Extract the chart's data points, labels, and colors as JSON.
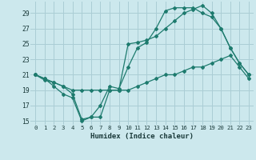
{
  "xlabel": "Humidex (Indice chaleur)",
  "bg_color": "#cce8ed",
  "line_color": "#1e7b6e",
  "grid_color": "#aacdd5",
  "xlim": [
    -0.5,
    23.5
  ],
  "ylim": [
    14.5,
    30.5
  ],
  "yticks": [
    15,
    17,
    19,
    21,
    23,
    25,
    27,
    29
  ],
  "xticks": [
    0,
    1,
    2,
    3,
    4,
    5,
    6,
    7,
    8,
    9,
    10,
    11,
    12,
    13,
    14,
    15,
    16,
    17,
    18,
    19,
    20,
    21,
    22,
    23
  ],
  "line1_x": [
    0,
    1,
    2,
    3,
    4,
    5,
    6,
    7,
    8,
    9,
    10,
    11,
    12,
    13,
    14,
    15,
    16,
    17,
    18,
    19,
    20,
    21,
    22,
    23
  ],
  "line1_y": [
    21,
    20.5,
    19.5,
    18.5,
    18,
    15,
    15.5,
    15.5,
    19,
    19,
    19,
    19.5,
    20,
    20.5,
    21,
    21,
    21.5,
    22,
    22,
    22.5,
    23,
    23.5,
    22,
    20.5
  ],
  "line2_x": [
    0,
    1,
    2,
    3,
    4,
    5,
    6,
    7,
    8,
    9,
    10,
    11,
    12,
    13,
    14,
    15,
    16,
    17,
    18,
    19,
    20,
    21,
    22,
    23
  ],
  "line2_y": [
    21,
    20.3,
    20.0,
    19.5,
    18.5,
    15.2,
    15.5,
    17.0,
    19.5,
    19.2,
    22.0,
    24.5,
    25.2,
    27.0,
    29.3,
    29.7,
    29.7,
    29.7,
    29.0,
    28.5,
    27.0,
    24.5,
    22.5,
    21.0
  ],
  "line3_x": [
    0,
    1,
    2,
    3,
    4,
    5,
    6,
    7,
    8,
    9,
    10,
    11,
    12,
    13,
    14,
    15,
    16,
    17,
    18,
    19,
    20,
    21,
    22,
    23
  ],
  "line3_y": [
    21,
    20.5,
    20.0,
    19.5,
    19.0,
    19.0,
    19.0,
    19.0,
    19.0,
    19.0,
    25.0,
    25.2,
    25.5,
    26.0,
    27.0,
    28.0,
    29.0,
    29.5,
    30.0,
    29.0,
    27.0,
    24.5,
    22.5,
    21.0
  ]
}
